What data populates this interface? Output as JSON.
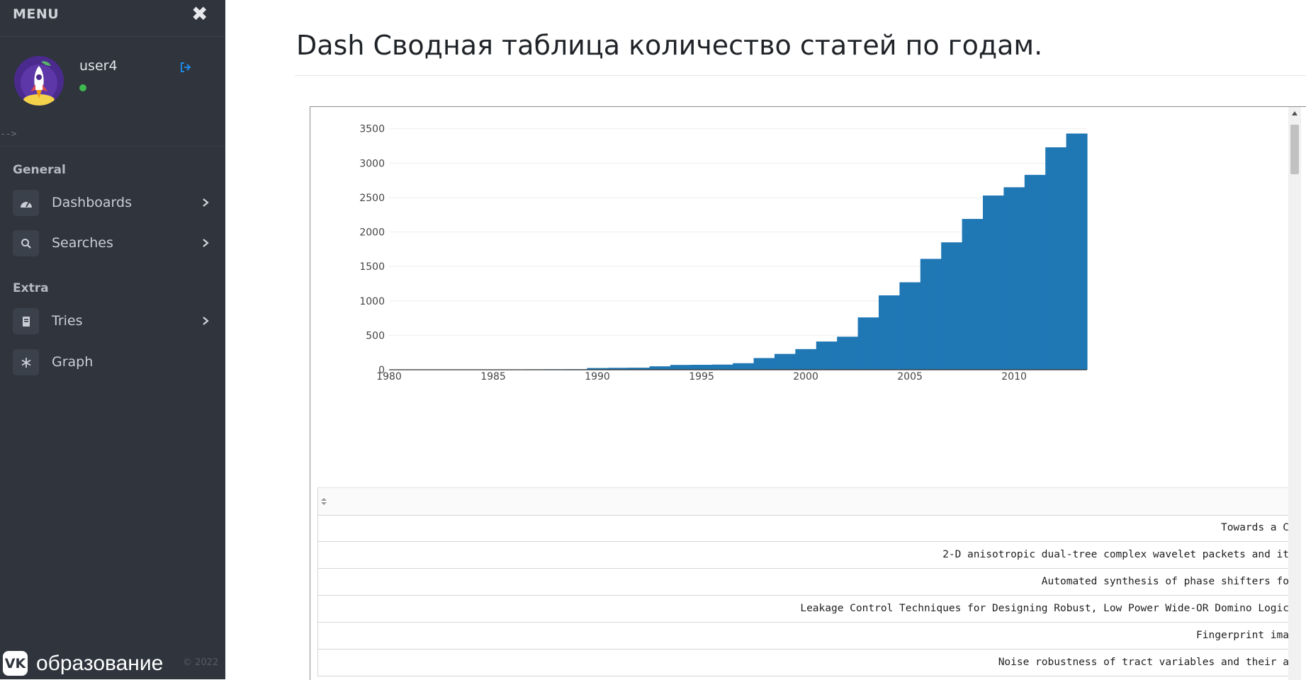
{
  "sidebar": {
    "menu_label": "MENU",
    "user": {
      "name": "user4",
      "status": "online"
    },
    "comment_arrow": "-->",
    "sections": [
      {
        "label": "General",
        "items": [
          {
            "label": "Dashboards",
            "icon": "dashboard-icon",
            "has_submenu": true
          },
          {
            "label": "Searches",
            "icon": "search-icon",
            "has_submenu": true
          }
        ]
      },
      {
        "label": "Extra",
        "items": [
          {
            "label": "Tries",
            "icon": "book-icon",
            "has_submenu": true
          },
          {
            "label": "Graph",
            "icon": "snowflake-icon",
            "has_submenu": false
          }
        ]
      }
    ],
    "footer": {
      "brand_badge": "VK",
      "brand_text": "образование",
      "copyright": "© 2022"
    }
  },
  "main": {
    "title": "Dash Сводная таблица количество статей по годам."
  },
  "chart_data": {
    "type": "bar",
    "x": [
      1982,
      1983,
      1984,
      1985,
      1986,
      1987,
      1988,
      1989,
      1990,
      1991,
      1992,
      1993,
      1994,
      1995,
      1996,
      1997,
      1998,
      1999,
      2000,
      2001,
      2002,
      2003,
      2004,
      2005,
      2006,
      2007,
      2008,
      2009,
      2010,
      2011,
      2012,
      2013
    ],
    "values": [
      2,
      2,
      3,
      3,
      5,
      6,
      7,
      8,
      25,
      28,
      30,
      50,
      70,
      72,
      75,
      95,
      170,
      230,
      300,
      410,
      480,
      760,
      1080,
      1270,
      1610,
      1850,
      2190,
      2530,
      2650,
      2830,
      3230,
      3430
    ],
    "xlim": [
      1980,
      2013.5
    ],
    "ylim": [
      0,
      3600
    ],
    "xticks": [
      1980,
      1985,
      1990,
      1995,
      2000,
      2005,
      2010
    ],
    "yticks": [
      0,
      500,
      1000,
      1500,
      2000,
      2500,
      3000,
      3500
    ],
    "grid": true,
    "colors": {
      "bar": "#1f77b4",
      "grid": "#eeeeee",
      "axis": "#333333",
      "tick_text": "#444444"
    }
  },
  "table": {
    "rows": [
      "Towards a C",
      "2-D anisotropic dual-tree complex wavelet packets and it",
      "Automated synthesis of phase shifters fo",
      "Leakage Control Techniques for Designing Robust, Low Power Wide-OR Domino Logic",
      "Fingerprint ima",
      "Noise robustness of tract variables and their a"
    ]
  },
  "colors": {
    "sidebar_bg": "#2f343d",
    "online": "#3fb950",
    "logout_icon": "#1e88e5"
  }
}
